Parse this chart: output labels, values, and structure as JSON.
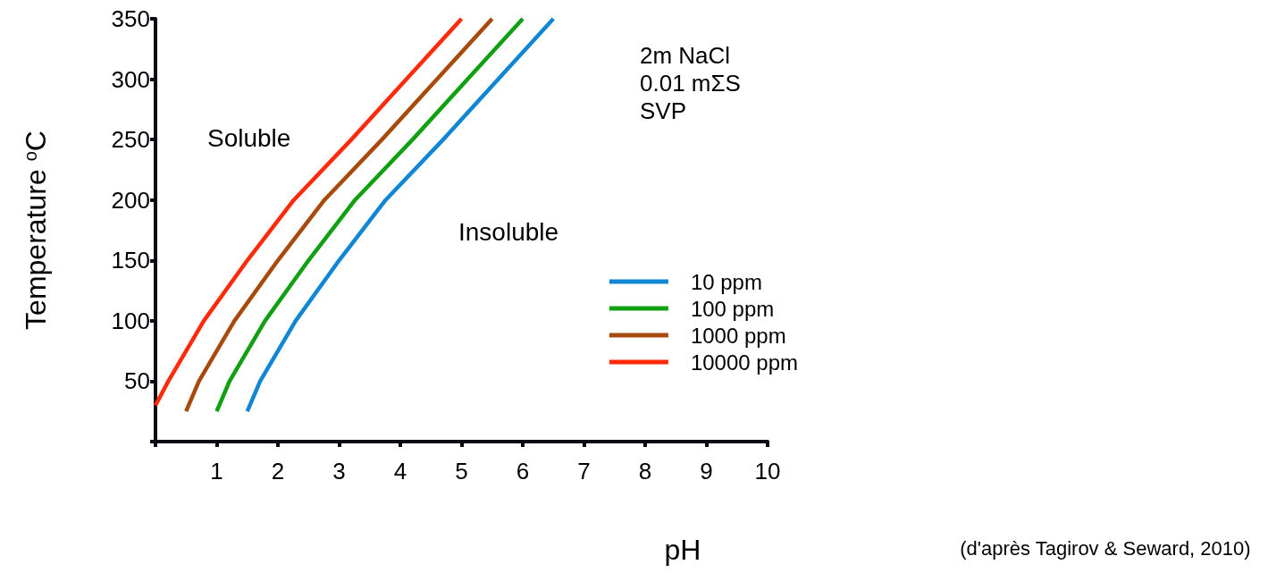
{
  "chart_data": {
    "type": "line",
    "xlabel": "pH",
    "ylabel": "Temperature $^{o}$C",
    "xlim": [
      0,
      10
    ],
    "xticks": [
      {
        "value": 0,
        "label": null
      },
      1,
      2,
      3,
      4,
      5,
      6,
      7,
      8,
      9,
      10
    ],
    "ylim": [
      0,
      350
    ],
    "yticks": [
      {
        "value": 0,
        "label": null
      },
      50,
      100,
      150,
      200,
      250,
      300,
      350
    ],
    "grid": false,
    "legend": "right",
    "marker": "none",
    "line_style": "solid",
    "annotations": [
      "Soluble",
      "Insoluble",
      "2m NaCl\n0.01 mΣS\nSVP",
      "(d'après Tagirov & Seward, 2010)"
    ],
    "series": [
      {
        "name": "10 ppm",
        "color": "#1187d3",
        "x": [
          1.5,
          1.71,
          2.29,
          3.0,
          3.76,
          4.7,
          5.6,
          6.5
        ],
        "values": [
          25,
          50,
          100,
          150,
          200,
          250,
          300,
          350
        ]
      },
      {
        "name": "100 ppm",
        "color": "#11a011",
        "x": [
          1.0,
          1.21,
          1.79,
          2.5,
          3.26,
          4.2,
          5.1,
          6.0
        ],
        "values": [
          25,
          50,
          100,
          150,
          200,
          250,
          300,
          350
        ]
      },
      {
        "name": "1000 ppm",
        "color": "#a84a0c",
        "x": [
          0.5,
          0.71,
          1.29,
          2.0,
          2.76,
          3.7,
          4.6,
          5.5
        ],
        "values": [
          25,
          50,
          100,
          150,
          200,
          250,
          300,
          350
        ]
      },
      {
        "name": "10000 ppm",
        "color": "#ff2a0a",
        "x": [
          0,
          0.21,
          0.79,
          1.5,
          2.26,
          3.2,
          4.1,
          5.0
        ],
        "values": [
          30,
          50,
          100,
          150,
          200,
          250,
          300,
          350
        ]
      }
    ]
  }
}
